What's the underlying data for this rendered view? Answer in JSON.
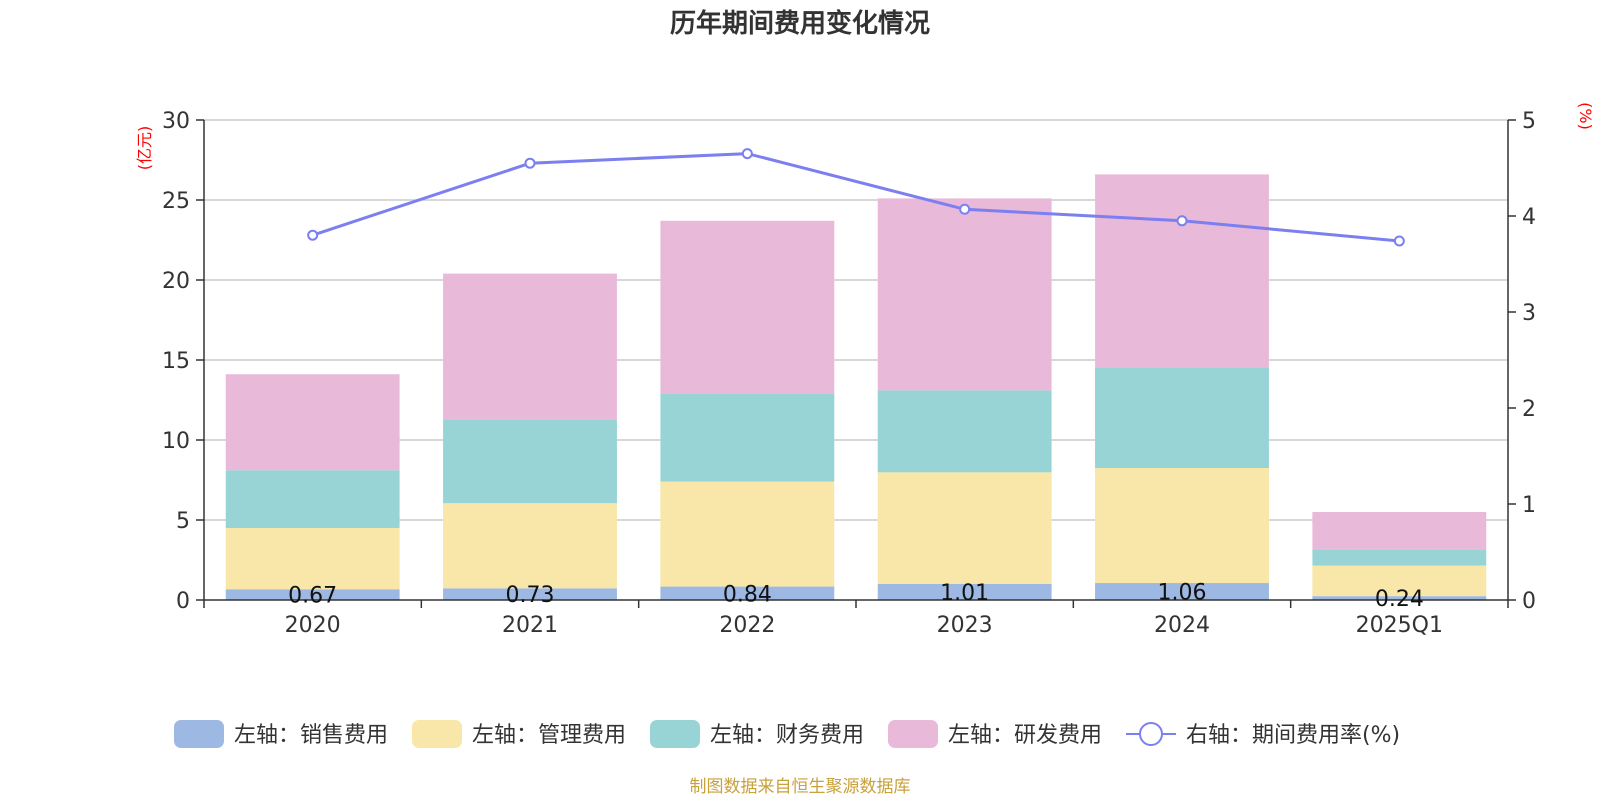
{
  "chart_data": {
    "type": "bar",
    "title": "历年期间费用变化情况",
    "categories": [
      "2020",
      "2021",
      "2022",
      "2023",
      "2024",
      "2025Q1"
    ],
    "left_axis": {
      "unit_label": "(亿元)",
      "ylim": [
        0,
        30
      ],
      "ticks": [
        "0",
        "5",
        "10",
        "15",
        "20",
        "25",
        "30"
      ]
    },
    "right_axis": {
      "unit_label": "(%)",
      "ylim": [
        0,
        5
      ],
      "ticks": [
        "0",
        "1",
        "2",
        "3",
        "4",
        "5"
      ]
    },
    "series": [
      {
        "name": "左轴：销售费用",
        "kind": "bar",
        "axis": "left",
        "color": "#9db8e2",
        "values": [
          0.67,
          0.73,
          0.84,
          1.01,
          1.06,
          0.24
        ],
        "labels": [
          "0.67",
          "0.73",
          "0.84",
          "1.01",
          "1.06",
          "0.24"
        ]
      },
      {
        "name": "左轴：管理费用",
        "kind": "bar",
        "axis": "left",
        "color": "#f8e7a8",
        "values": [
          3.83,
          5.32,
          6.56,
          6.97,
          7.19,
          1.91
        ]
      },
      {
        "name": "左轴：财务费用",
        "kind": "bar",
        "axis": "left",
        "color": "#98d4d5",
        "values": [
          3.61,
          5.25,
          5.5,
          5.12,
          6.25,
          1.0
        ]
      },
      {
        "name": "左轴：研发费用",
        "kind": "bar",
        "axis": "left",
        "color": "#e8b9d9",
        "values": [
          6.0,
          9.1,
          10.8,
          12.0,
          12.1,
          2.35
        ]
      },
      {
        "name": "右轴：期间费用率(%)",
        "kind": "line",
        "axis": "right",
        "color": "#7b7ff0",
        "values": [
          3.8,
          4.55,
          4.65,
          4.07,
          3.95,
          3.74
        ]
      }
    ],
    "grid": true,
    "legend_position": "bottom"
  },
  "source_note": "制图数据来自恒生聚源数据库"
}
